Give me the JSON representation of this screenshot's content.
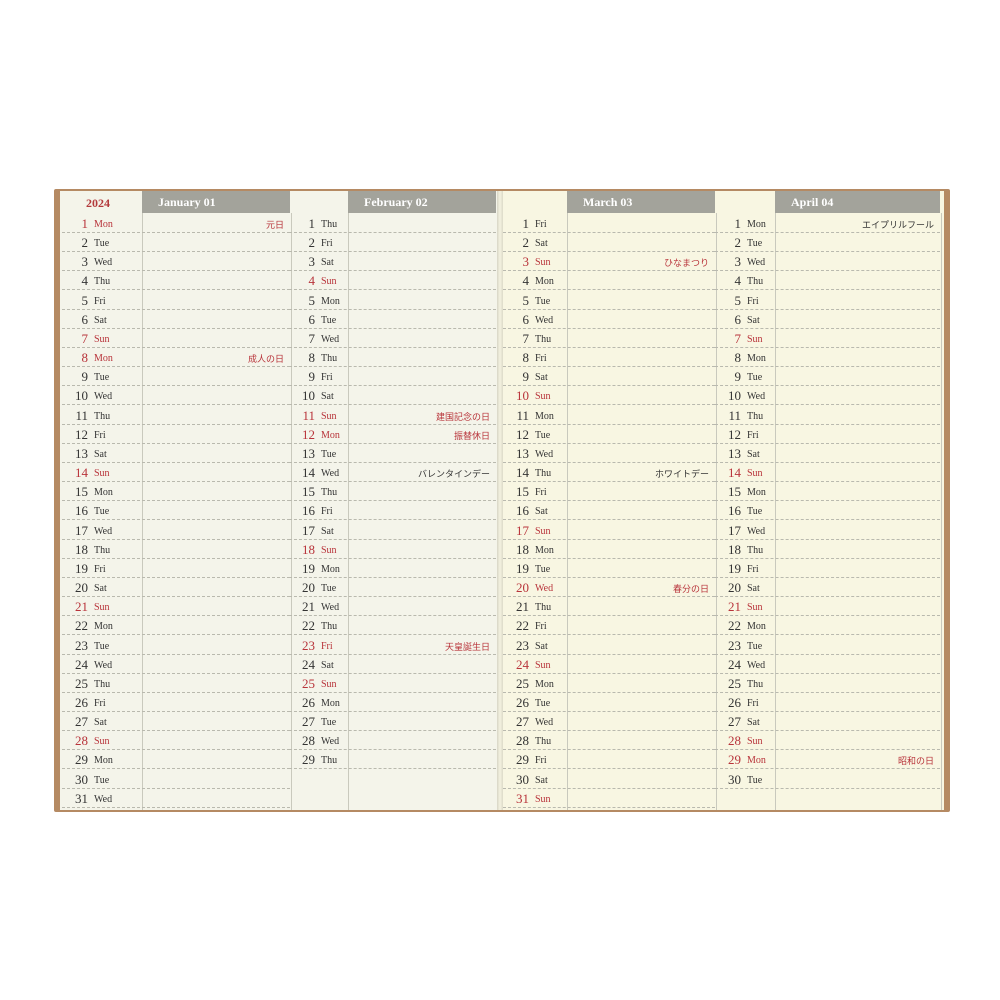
{
  "year": "2024",
  "colors": {
    "accent_red": "#b8333a",
    "header_gray": "#a3a39b",
    "cover": "#b58a63"
  },
  "months": [
    {
      "title": "January 01",
      "weekdays": [
        "Mon",
        "Tue",
        "Wed",
        "Thu",
        "Fri",
        "Sat",
        "Sun",
        "Mon",
        "Tue",
        "Wed",
        "Thu",
        "Fri",
        "Sat",
        "Sun",
        "Mon",
        "Tue",
        "Wed",
        "Thu",
        "Fri",
        "Sat",
        "Sun",
        "Mon",
        "Tue",
        "Wed",
        "Thu",
        "Fri",
        "Sat",
        "Sun",
        "Mon",
        "Tue",
        "Wed"
      ],
      "holidays": [
        {
          "day": 1,
          "label": "元日",
          "red": true
        },
        {
          "day": 8,
          "label": "成人の日",
          "red": true
        }
      ]
    },
    {
      "title": "February 02",
      "weekdays": [
        "Thu",
        "Fri",
        "Sat",
        "Sun",
        "Mon",
        "Tue",
        "Wed",
        "Thu",
        "Fri",
        "Sat",
        "Sun",
        "Mon",
        "Tue",
        "Wed",
        "Thu",
        "Fri",
        "Sat",
        "Sun",
        "Mon",
        "Tue",
        "Wed",
        "Thu",
        "Fri",
        "Sat",
        "Sun",
        "Mon",
        "Tue",
        "Wed",
        "Thu"
      ],
      "holidays": [
        {
          "day": 11,
          "label": "建国記念の日",
          "red": true
        },
        {
          "day": 12,
          "label": "振替休日",
          "red": true
        },
        {
          "day": 14,
          "label": "バレンタインデー",
          "red": false
        },
        {
          "day": 23,
          "label": "天皇誕生日",
          "red": true
        }
      ]
    },
    {
      "title": "March 03",
      "weekdays": [
        "Fri",
        "Sat",
        "Sun",
        "Mon",
        "Tue",
        "Wed",
        "Thu",
        "Fri",
        "Sat",
        "Sun",
        "Mon",
        "Tue",
        "Wed",
        "Thu",
        "Fri",
        "Sat",
        "Sun",
        "Mon",
        "Tue",
        "Wed",
        "Thu",
        "Fri",
        "Sat",
        "Sun",
        "Mon",
        "Tue",
        "Wed",
        "Thu",
        "Fri",
        "Sat",
        "Sun"
      ],
      "holidays": [
        {
          "day": 3,
          "label": "ひなまつり",
          "red": true
        },
        {
          "day": 14,
          "label": "ホワイトデー",
          "red": false
        },
        {
          "day": 20,
          "label": "春分の日",
          "red": true
        }
      ]
    },
    {
      "title": "April 04",
      "weekdays": [
        "Mon",
        "Tue",
        "Wed",
        "Thu",
        "Fri",
        "Sat",
        "Sun",
        "Mon",
        "Tue",
        "Wed",
        "Thu",
        "Fri",
        "Sat",
        "Sun",
        "Mon",
        "Tue",
        "Wed",
        "Thu",
        "Fri",
        "Sat",
        "Sun",
        "Mon",
        "Tue",
        "Wed",
        "Thu",
        "Fri",
        "Sat",
        "Sun",
        "Mon",
        "Tue"
      ],
      "holidays": [
        {
          "day": 1,
          "label": "エイプリルフール",
          "red": false
        },
        {
          "day": 29,
          "label": "昭和の日",
          "red": true
        }
      ]
    }
  ]
}
